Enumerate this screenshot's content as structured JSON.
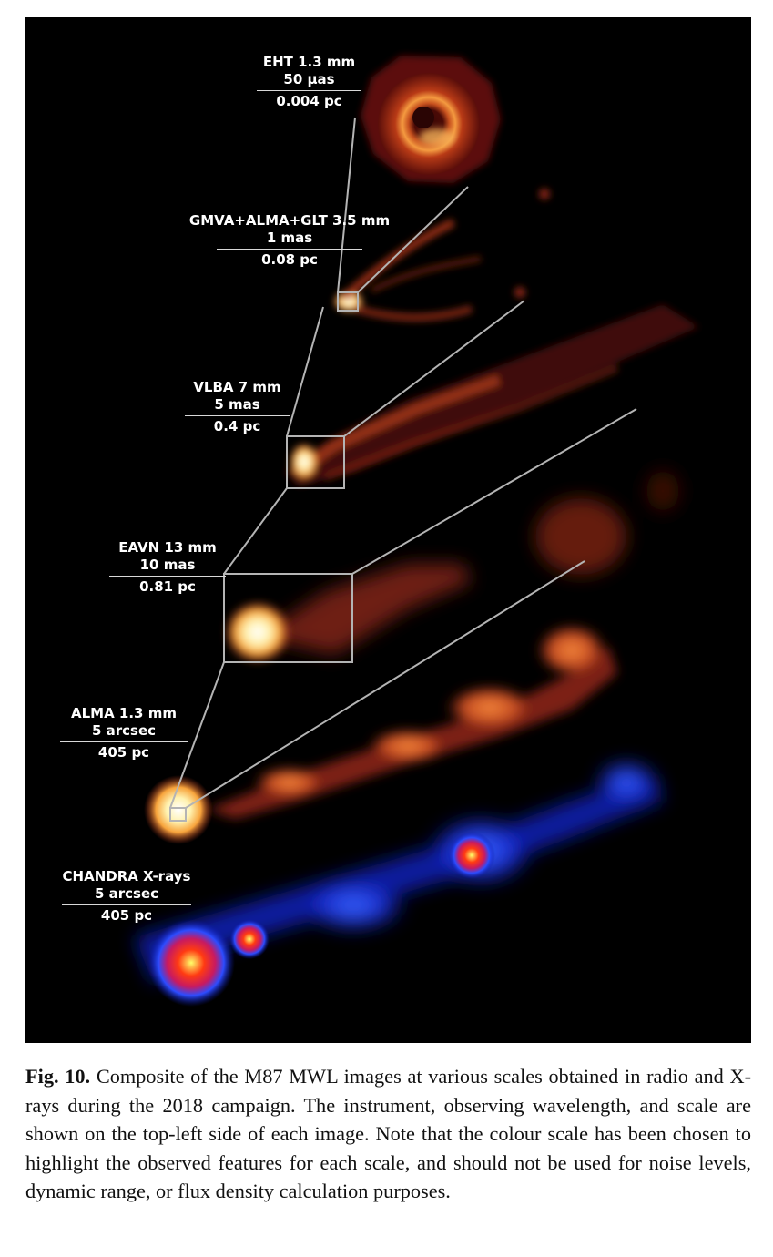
{
  "panels": [
    {
      "id": "eht",
      "instrument": "EHT 1.3 mm",
      "scale_angular": "50 µas",
      "scale_physical": "0.004 pc"
    },
    {
      "id": "gmva",
      "instrument": "GMVA+ALMA+GLT 3.5 mm",
      "scale_angular": "1 mas",
      "scale_physical": "0.08 pc"
    },
    {
      "id": "vlba",
      "instrument": "VLBA 7 mm",
      "scale_angular": "5 mas",
      "scale_physical": "0.4 pc"
    },
    {
      "id": "eavn",
      "instrument": "EAVN 13 mm",
      "scale_angular": "10 mas",
      "scale_physical": "0.81 pc"
    },
    {
      "id": "alma",
      "instrument": "ALMA 1.3 mm",
      "scale_angular": "5 arcsec",
      "scale_physical": "405 pc"
    },
    {
      "id": "chandra",
      "instrument": "CHANDRA X-rays",
      "scale_angular": "5 arcsec",
      "scale_physical": "405 pc"
    }
  ],
  "caption": {
    "label": "Fig. 10.",
    "text": "Composite of the M87 MWL images at various scales obtained in radio and X-rays during the 2018 campaign. The instrument, observing wavelength, and scale are shown on the top-left side of each image. Note that the colour scale has been chosen to highlight the observed features for each scale, and should not be used for noise levels, dynamic range, or flux density calculation purposes."
  },
  "colors": {
    "background": "#000000",
    "radio_hot": "#fff6c8",
    "radio_mid": "#f08a3c",
    "radio_low": "#8a1e12",
    "xray_low": "#1428c8",
    "xray_mid": "#3c6cff",
    "xray_hot": "#ff2a10",
    "zoom_lines": "#b4b4b4"
  }
}
